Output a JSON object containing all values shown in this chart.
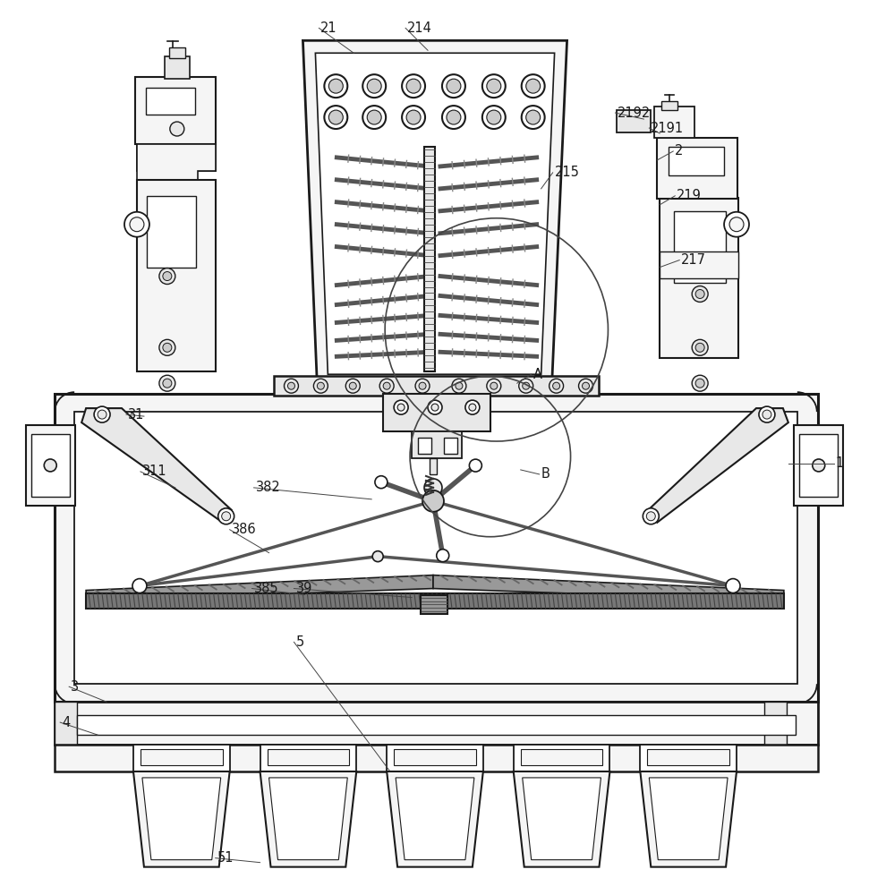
{
  "bg_color": "#ffffff",
  "lc": "#1a1a1a",
  "fc_light": "#f5f5f5",
  "fc_med": "#e8e8e8",
  "fc_dark": "#cccccc",
  "fig_width": 9.71,
  "fig_height": 10.0
}
